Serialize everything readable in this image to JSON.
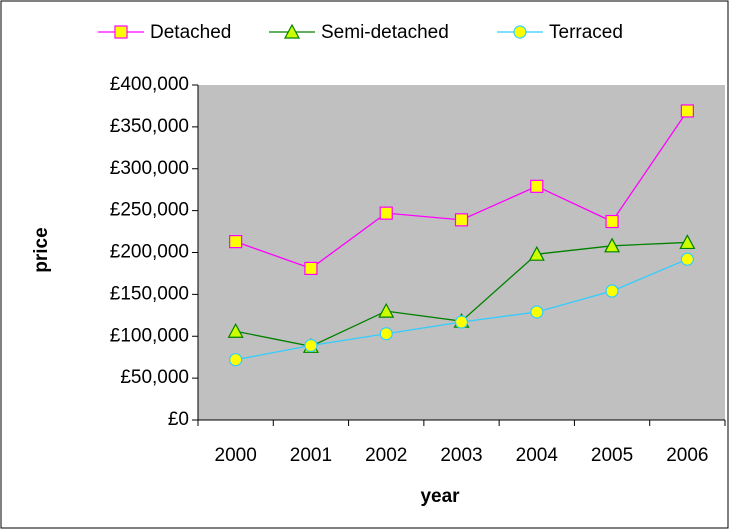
{
  "chart_data": {
    "type": "line",
    "x_label": "year",
    "y_label": "price",
    "categories": [
      "2000",
      "2001",
      "2002",
      "2003",
      "2004",
      "2005",
      "2006"
    ],
    "series": [
      {
        "name": "Detached",
        "color": "#ff00ff",
        "marker": "square",
        "marker_color": "#ffff00",
        "values": [
          213000,
          181000,
          247000,
          239000,
          279000,
          237000,
          369000
        ]
      },
      {
        "name": "Semi-detached",
        "color": "#008000",
        "marker": "triangle",
        "marker_color": "#ccff00",
        "values": [
          106000,
          88000,
          130000,
          118000,
          198000,
          208000,
          212000
        ]
      },
      {
        "name": "Terraced",
        "color": "#33ccff",
        "marker": "circle",
        "marker_color": "#ffff00",
        "values": [
          72000,
          89000,
          103000,
          117000,
          129000,
          154000,
          192000
        ]
      }
    ],
    "ylim": [
      0,
      400000
    ],
    "yticks": [
      {
        "value": 0,
        "label": "£0"
      },
      {
        "value": 50000,
        "label": "£50,000"
      },
      {
        "value": 100000,
        "label": "£100,000"
      },
      {
        "value": 150000,
        "label": "£150,000"
      },
      {
        "value": 200000,
        "label": "£200,000"
      },
      {
        "value": 250000,
        "label": "£250,000"
      },
      {
        "value": 300000,
        "label": "£300,000"
      },
      {
        "value": 350000,
        "label": "£350,000"
      },
      {
        "value": 400000,
        "label": "£400,000"
      }
    ],
    "plot_background": "#c0c0c0",
    "legend": "top"
  }
}
